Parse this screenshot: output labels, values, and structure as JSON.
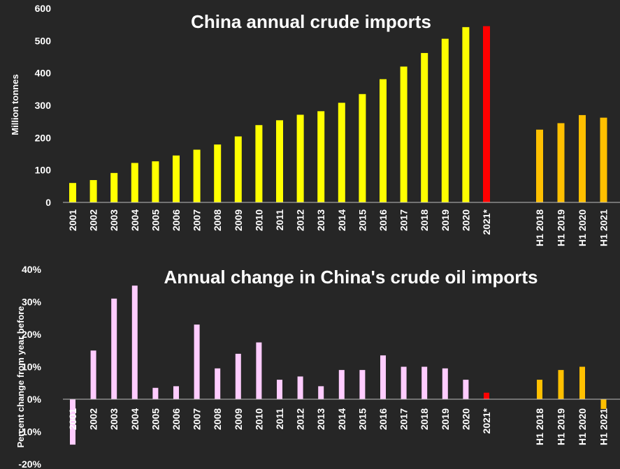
{
  "colors": {
    "background": "#262626",
    "text": "#ffffff",
    "annual_bar": "#ffff00",
    "estimate_bar": "#ff0000",
    "half_year_bar": "#ffc000",
    "change_bar": "#ffccff",
    "axis": "#bfbfbf"
  },
  "chart_data": [
    {
      "type": "bar",
      "title": "China annual crude imports",
      "ylabel": "Million tonnes",
      "ylim": [
        0,
        600
      ],
      "yticks": [
        0,
        100,
        200,
        300,
        400,
        500,
        600
      ],
      "ytick_labels": [
        "0",
        "100",
        "200",
        "300",
        "400",
        "500",
        "600"
      ],
      "grid": false,
      "categories": [
        "2001",
        "2002",
        "2003",
        "2004",
        "2005",
        "2006",
        "2007",
        "2008",
        "2009",
        "2010",
        "2011",
        "2012",
        "2013",
        "2014",
        "2015",
        "2016",
        "2017",
        "2018",
        "2019",
        "2020",
        "2021*",
        "H1 2018",
        "H1 2019",
        "H1 2020",
        "H1 2021"
      ],
      "values": [
        60,
        69,
        91,
        122,
        127,
        145,
        163,
        179,
        204,
        239,
        254,
        271,
        282,
        308,
        335,
        381,
        420,
        462,
        506,
        542,
        545,
        225,
        245,
        270,
        262
      ],
      "bar_colors": [
        "annual_bar",
        "annual_bar",
        "annual_bar",
        "annual_bar",
        "annual_bar",
        "annual_bar",
        "annual_bar",
        "annual_bar",
        "annual_bar",
        "annual_bar",
        "annual_bar",
        "annual_bar",
        "annual_bar",
        "annual_bar",
        "annual_bar",
        "annual_bar",
        "annual_bar",
        "annual_bar",
        "annual_bar",
        "annual_bar",
        "estimate_bar",
        "half_year_bar",
        "half_year_bar",
        "half_year_bar",
        "half_year_bar"
      ]
    },
    {
      "type": "bar",
      "title": "Annual change in China's crude oil imports",
      "ylabel": "Percent change from year before",
      "ylim": [
        -20,
        40
      ],
      "yticks": [
        -20,
        -10,
        0,
        10,
        20,
        30,
        40
      ],
      "ytick_labels": [
        "-20%",
        "-10%",
        "0%",
        "10%",
        "20%",
        "30%",
        "40%"
      ],
      "grid": false,
      "categories": [
        "2001",
        "2002",
        "2003",
        "2004",
        "2005",
        "2006",
        "2007",
        "2008",
        "2009",
        "2010",
        "2011",
        "2012",
        "2013",
        "2014",
        "2015",
        "2016",
        "2017",
        "2018",
        "2019",
        "2020",
        "2021*",
        "H1 2018",
        "H1 2019",
        "H1 2020",
        "H1 2021"
      ],
      "values": [
        -14,
        15,
        31,
        35,
        3.5,
        4,
        23,
        9.5,
        14,
        17.5,
        6,
        7,
        4,
        9,
        9,
        13.5,
        10,
        10,
        9.5,
        6,
        2,
        6,
        9,
        10,
        -3
      ],
      "bar_colors": [
        "change_bar",
        "change_bar",
        "change_bar",
        "change_bar",
        "change_bar",
        "change_bar",
        "change_bar",
        "change_bar",
        "change_bar",
        "change_bar",
        "change_bar",
        "change_bar",
        "change_bar",
        "change_bar",
        "change_bar",
        "change_bar",
        "change_bar",
        "change_bar",
        "change_bar",
        "change_bar",
        "estimate_bar",
        "half_year_bar",
        "half_year_bar",
        "half_year_bar",
        "half_year_bar"
      ]
    }
  ]
}
